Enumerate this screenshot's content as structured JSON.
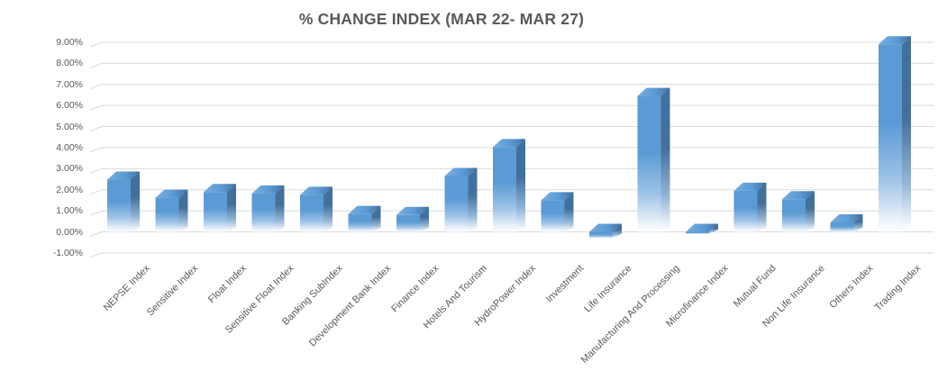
{
  "title": "% CHANGE INDEX (MAR 22- MAR 27)",
  "chart_data": {
    "type": "bar",
    "style": "3d-column-gradient-fade",
    "title": "% CHANGE INDEX (MAR 22- MAR 27)",
    "categories": [
      "NEPSE Index",
      "Sensitive Index",
      "Float Index",
      "Sensitive Float Index",
      "Banking SubIndex",
      "Development Bank Index",
      "Finance Index",
      "Hotels And Tourism",
      "HydroPower Index",
      "Investment",
      "Life Insurance",
      "Manufacturing And Processing",
      "Microfinance Index",
      "Mutual Fund",
      "Non Life Insurance",
      "Others Index",
      "Trading Index"
    ],
    "values": [
      2.48,
      1.62,
      1.89,
      1.82,
      1.76,
      0.85,
      0.8,
      2.65,
      4.02,
      1.5,
      -0.3,
      6.45,
      -0.1,
      1.95,
      1.55,
      0.45,
      8.9
    ],
    "unit": "%",
    "ylim": [
      -1,
      9
    ],
    "ytick_step": 1,
    "ytick_labels": [
      "9.00%",
      "8.00%",
      "7.00%",
      "6.00%",
      "5.00%",
      "4.00%",
      "3.00%",
      "2.00%",
      "1.00%",
      "0.00%",
      "-1.00%"
    ],
    "xlabel": "",
    "ylabel": "",
    "grid": true,
    "legend": false,
    "colors": {
      "bar_front": "#5b9bd5",
      "bar_side": "#41719c",
      "bar_top_light": "#76ade0",
      "bar_top_dark": "#38618d",
      "gridline": "#d9d9d9",
      "axis_label": "#595959",
      "title": "#595959",
      "background": "#ffffff"
    }
  }
}
